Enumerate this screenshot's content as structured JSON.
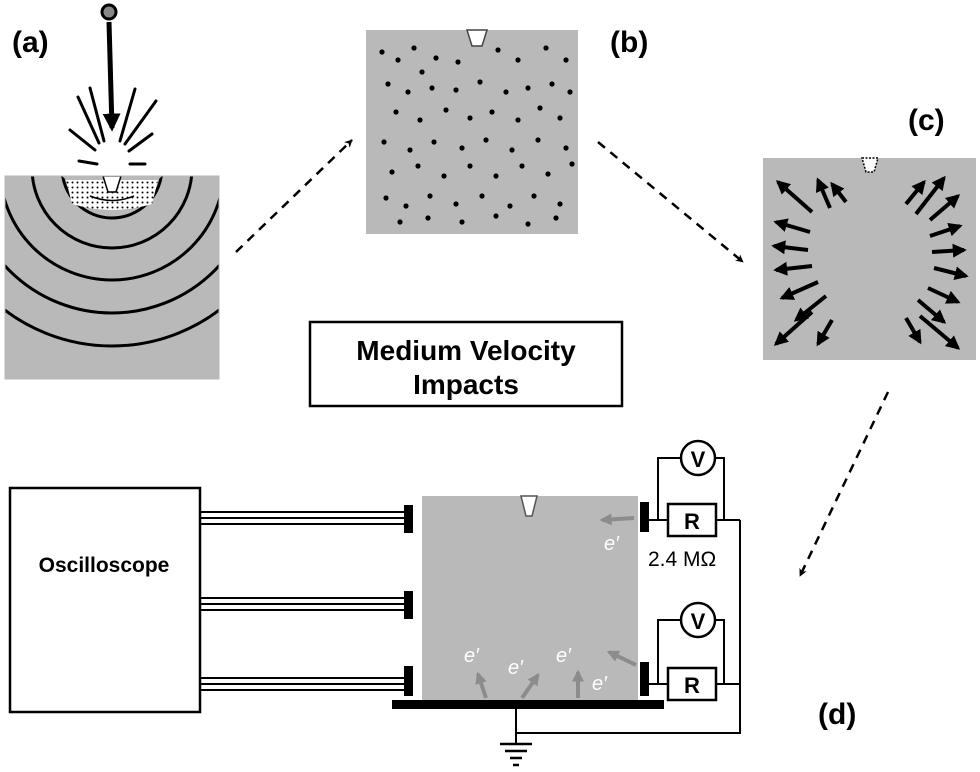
{
  "panels": {
    "a": {
      "label": "(a)"
    },
    "b": {
      "label": "(b)"
    },
    "c": {
      "label": "(c)"
    },
    "d": {
      "label": "(d)"
    }
  },
  "title_box": {
    "line1": "Medium Velocity",
    "line2": "Impacts"
  },
  "oscilloscope": {
    "label": "Oscilloscope"
  },
  "circuit": {
    "voltmeter_label": "V",
    "resistor_label": "R",
    "resistance_value": "2.4 MΩ"
  },
  "electron_label": "e′",
  "colors": {
    "block_gray": "#b9b9b9",
    "arrow_gray": "#8c8c8c",
    "ink": "#000000"
  }
}
